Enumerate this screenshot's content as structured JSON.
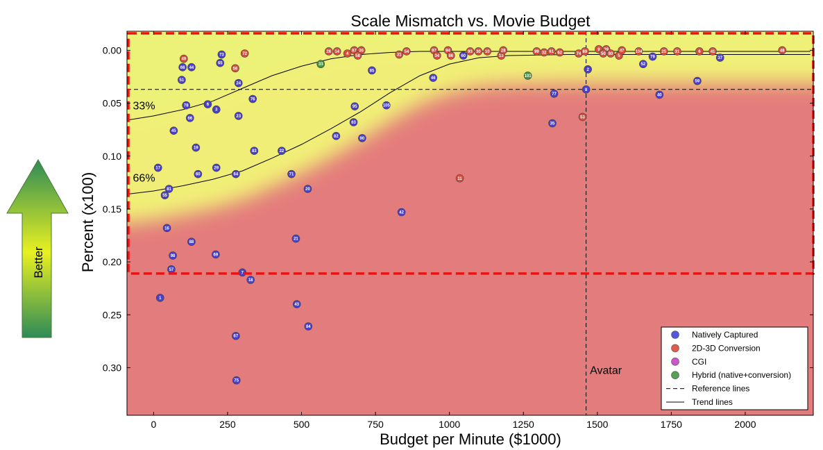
{
  "chart_data": {
    "type": "scatter",
    "title": "Scale Mismatch vs. Movie Budget",
    "xlabel": "Budget per Minute ($1000)",
    "ylabel": "Percent (x100)",
    "xlim": [
      -90,
      2230
    ],
    "ylim": [
      0.345,
      -0.018
    ],
    "y_inverted": true,
    "xticks": [
      0,
      250,
      500,
      750,
      1000,
      1250,
      1500,
      1750,
      2000
    ],
    "xtick_labels": [
      "0",
      "250",
      "500",
      "750",
      "1000",
      "1250",
      "1500",
      "1750",
      "2000"
    ],
    "yticks": [
      0.0,
      0.05,
      0.1,
      0.15,
      0.2,
      0.25,
      0.3
    ],
    "ytick_labels": [
      "0.00",
      "0.05",
      "0.10",
      "0.15",
      "0.20",
      "0.25",
      "0.30"
    ],
    "side_label": "Better",
    "annotations": {
      "p33": {
        "text": "33%",
        "x": -70,
        "y": 0.056
      },
      "p66": {
        "text": "66%",
        "x": -70,
        "y": 0.124
      },
      "avatar": {
        "text": "Avatar",
        "x": 1475,
        "y": 0.306
      }
    },
    "reference_lines": {
      "vertical_x": 1462,
      "horizontal_y": 0.037
    },
    "highlight_box": {
      "x": [
        -90,
        2230
      ],
      "y": [
        -0.018,
        0.211
      ]
    },
    "trend_lines": [
      {
        "name": "33% trend",
        "x": [
          -90,
          0,
          100,
          200,
          300,
          400,
          500,
          600,
          700,
          800,
          900,
          1000,
          1100,
          1200,
          1400,
          1600,
          1800,
          2000,
          2220
        ],
        "y": [
          0.066,
          0.062,
          0.056,
          0.048,
          0.036,
          0.024,
          0.015,
          0.008,
          0.004,
          0.002,
          0.001,
          0.001,
          0.001,
          0.001,
          0.001,
          0.001,
          0.001,
          0.001,
          0.001
        ]
      },
      {
        "name": "66% trend",
        "x": [
          -90,
          0,
          100,
          200,
          300,
          400,
          500,
          600,
          700,
          800,
          900,
          1000,
          1100,
          1200,
          1400,
          1600,
          1800,
          2000,
          2220
        ],
        "y": [
          0.136,
          0.133,
          0.128,
          0.122,
          0.114,
          0.102,
          0.089,
          0.074,
          0.058,
          0.04,
          0.024,
          0.013,
          0.007,
          0.005,
          0.004,
          0.004,
          0.004,
          0.004,
          0.004
        ]
      }
    ],
    "legend_position": "lower-right",
    "legend": [
      {
        "label": "Natively Captured",
        "kind": "marker",
        "color": "#5555e0"
      },
      {
        "label": "2D-3D Conversion",
        "kind": "marker",
        "color": "#e05a4e"
      },
      {
        "label": "CGI",
        "kind": "marker",
        "color": "#cc55cc"
      },
      {
        "label": "Hybrid (native+conversion)",
        "kind": "marker",
        "color": "#55a055"
      },
      {
        "label": "Reference lines",
        "kind": "dashed"
      },
      {
        "label": "Trend lines",
        "kind": "solid"
      }
    ],
    "series": [
      {
        "name": "Natively Captured",
        "color": "#4a3fc8",
        "points": [
          {
            "id": "73",
            "x": 230,
            "y": 0.004
          },
          {
            "id": "68",
            "x": 98,
            "y": 0.016
          },
          {
            "id": "44",
            "x": 128,
            "y": 0.016
          },
          {
            "id": "65",
            "x": 225,
            "y": 0.012
          },
          {
            "id": "51",
            "x": 95,
            "y": 0.028
          },
          {
            "id": "24",
            "x": 287,
            "y": 0.031
          },
          {
            "id": "78",
            "x": 110,
            "y": 0.052
          },
          {
            "id": "6",
            "x": 183,
            "y": 0.051
          },
          {
            "id": "76",
            "x": 335,
            "y": 0.046
          },
          {
            "id": "3",
            "x": 212,
            "y": 0.056
          },
          {
            "id": "66",
            "x": 123,
            "y": 0.064
          },
          {
            "id": "23",
            "x": 287,
            "y": 0.062
          },
          {
            "id": "45",
            "x": 68,
            "y": 0.076
          },
          {
            "id": "19",
            "x": 143,
            "y": 0.092
          },
          {
            "id": "83",
            "x": 340,
            "y": 0.095
          },
          {
            "id": "22",
            "x": 433,
            "y": 0.095
          },
          {
            "id": "17",
            "x": 15,
            "y": 0.111
          },
          {
            "id": "29",
            "x": 212,
            "y": 0.111
          },
          {
            "id": "60",
            "x": 150,
            "y": 0.117
          },
          {
            "id": "64",
            "x": 278,
            "y": 0.117
          },
          {
            "id": "71",
            "x": 466,
            "y": 0.117
          },
          {
            "id": "81",
            "x": 52,
            "y": 0.131
          },
          {
            "id": "55",
            "x": 38,
            "y": 0.137
          },
          {
            "id": "20",
            "x": 521,
            "y": 0.131
          },
          {
            "id": "16",
            "x": 45,
            "y": 0.168
          },
          {
            "id": "88",
            "x": 128,
            "y": 0.181
          },
          {
            "id": "21",
            "x": 481,
            "y": 0.178
          },
          {
            "id": "98",
            "x": 65,
            "y": 0.194
          },
          {
            "id": "69",
            "x": 210,
            "y": 0.193
          },
          {
            "id": "57",
            "x": 60,
            "y": 0.207
          },
          {
            "id": "7",
            "x": 300,
            "y": 0.21
          },
          {
            "id": "18",
            "x": 328,
            "y": 0.217
          },
          {
            "id": "1",
            "x": 22,
            "y": 0.234
          },
          {
            "id": "43",
            "x": 484,
            "y": 0.24
          },
          {
            "id": "84",
            "x": 523,
            "y": 0.261
          },
          {
            "id": "67",
            "x": 278,
            "y": 0.27
          },
          {
            "id": "75",
            "x": 280,
            "y": 0.312
          },
          {
            "id": "85",
            "x": 738,
            "y": 0.019
          },
          {
            "id": "46",
            "x": 945,
            "y": 0.026
          },
          {
            "id": "60",
            "x": 1047,
            "y": 0.005
          },
          {
            "id": "95",
            "x": 680,
            "y": 0.053
          },
          {
            "id": "105",
            "x": 787,
            "y": 0.052
          },
          {
            "id": "63",
            "x": 676,
            "y": 0.068
          },
          {
            "id": "82",
            "x": 617,
            "y": 0.081
          },
          {
            "id": "90",
            "x": 705,
            "y": 0.083
          },
          {
            "id": "42",
            "x": 838,
            "y": 0.153
          },
          {
            "id": "2",
            "x": 1468,
            "y": 0.018
          },
          {
            "id": "8",
            "x": 1462,
            "y": 0.037
          },
          {
            "id": "77",
            "x": 1354,
            "y": 0.041
          },
          {
            "id": "35",
            "x": 1348,
            "y": 0.069
          },
          {
            "id": "52",
            "x": 1655,
            "y": 0.013
          },
          {
            "id": "79",
            "x": 1687,
            "y": 0.006
          },
          {
            "id": "40",
            "x": 1710,
            "y": 0.042
          },
          {
            "id": "59",
            "x": 1838,
            "y": 0.029
          },
          {
            "id": "37",
            "x": 1915,
            "y": 0.007
          }
        ]
      },
      {
        "name": "2D-3D Conversion",
        "color": "#d4503e",
        "points": [
          {
            "id": "49",
            "x": 102,
            "y": 0.008
          },
          {
            "id": "72",
            "x": 308,
            "y": 0.003
          },
          {
            "id": "56",
            "x": 276,
            "y": 0.017
          },
          {
            "id": "26",
            "x": 592,
            "y": 0.001
          },
          {
            "id": "14",
            "x": 620,
            "y": 0.001
          },
          {
            "id": "4",
            "x": 655,
            "y": 0.003
          },
          {
            "id": "87",
            "x": 678,
            "y": 0.0
          },
          {
            "id": "36",
            "x": 702,
            "y": 0.0
          },
          {
            "id": "58",
            "x": 690,
            "y": 0.005
          },
          {
            "id": "31",
            "x": 830,
            "y": 0.004
          },
          {
            "id": "54",
            "x": 855,
            "y": 0.001
          },
          {
            "id": "97",
            "x": 948,
            "y": 0.0
          },
          {
            "id": "34",
            "x": 958,
            "y": 0.005
          },
          {
            "id": "94",
            "x": 995,
            "y": 0.0
          },
          {
            "id": "86",
            "x": 1005,
            "y": 0.005
          },
          {
            "id": "93",
            "x": 1070,
            "y": 0.001
          },
          {
            "id": "30",
            "x": 1098,
            "y": 0.001
          },
          {
            "id": "10",
            "x": 1128,
            "y": 0.001
          },
          {
            "id": "13",
            "x": 1175,
            "y": 0.005
          },
          {
            "id": "28",
            "x": 1182,
            "y": 0.0
          },
          {
            "id": "99",
            "x": 1295,
            "y": 0.001
          },
          {
            "id": "32",
            "x": 1320,
            "y": 0.002
          },
          {
            "id": "61",
            "x": 1345,
            "y": 0.001
          },
          {
            "id": "62",
            "x": 1373,
            "y": 0.002
          },
          {
            "id": "74",
            "x": 1437,
            "y": 0.003
          },
          {
            "id": "89",
            "x": 1458,
            "y": 0.001
          },
          {
            "id": "9",
            "x": 1505,
            "y": -0.001
          },
          {
            "id": "39",
            "x": 1530,
            "y": -0.001
          },
          {
            "id": "50",
            "x": 1520,
            "y": 0.003
          },
          {
            "id": "80",
            "x": 1545,
            "y": 0.003
          },
          {
            "id": "5",
            "x": 1573,
            "y": 0.005
          },
          {
            "id": "47",
            "x": 1583,
            "y": 0.0
          },
          {
            "id": "104",
            "x": 1640,
            "y": 0.001
          },
          {
            "id": "25",
            "x": 1725,
            "y": 0.001
          },
          {
            "id": "31",
            "x": 1770,
            "y": 0.001
          },
          {
            "id": "6",
            "x": 1845,
            "y": 0.001
          },
          {
            "id": "41",
            "x": 1890,
            "y": 0.001
          },
          {
            "id": "48",
            "x": 2125,
            "y": 0.0
          },
          {
            "id": "53",
            "x": 1450,
            "y": 0.063
          },
          {
            "id": "11",
            "x": 1035,
            "y": 0.121
          }
        ]
      },
      {
        "name": "Hybrid (native+conversion)",
        "color": "#4a9048",
        "points": [
          {
            "id": "33",
            "x": 565,
            "y": 0.013
          },
          {
            "id": "101",
            "x": 1265,
            "y": 0.024
          }
        ]
      }
    ]
  }
}
